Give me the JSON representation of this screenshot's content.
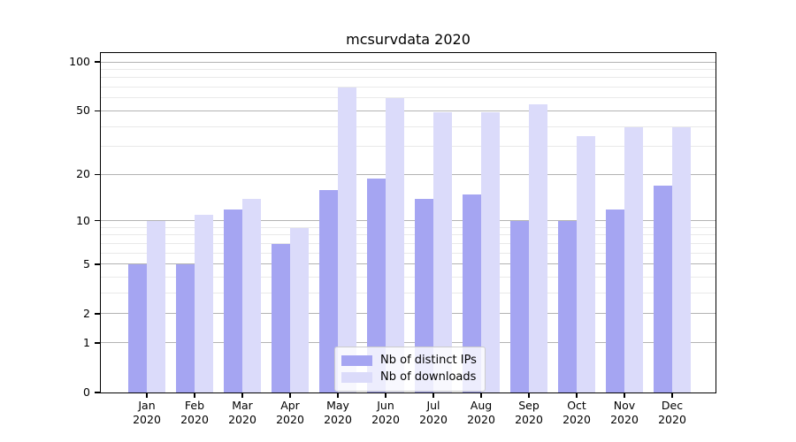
{
  "title": "mcsurvdata 2020",
  "chart_data": {
    "type": "bar",
    "title": "mcsurvdata 2020",
    "categories": [
      "Jan 2020",
      "Feb 2020",
      "Mar 2020",
      "Apr 2020",
      "May 2020",
      "Jun 2020",
      "Jul 2020",
      "Aug 2020",
      "Sep 2020",
      "Oct 2020",
      "Nov 2020",
      "Dec 2020"
    ],
    "series": [
      {
        "name": "Nb of distinct IPs",
        "key": "distinct-ips",
        "color": "#a5a5f2",
        "values": [
          5,
          5,
          12,
          7,
          16,
          19,
          14,
          15,
          10,
          10,
          12,
          17
        ]
      },
      {
        "name": "Nb of downloads",
        "key": "downloads",
        "color": "#dbdbfa",
        "values": [
          10,
          11,
          14,
          9,
          70,
          60,
          49,
          49,
          55,
          35,
          40,
          40
        ]
      }
    ],
    "xlabel": "",
    "ylabel": "",
    "yscale": "log(value+1)",
    "ylim": [
      0,
      115
    ],
    "yticks_major": [
      100,
      50,
      20,
      10,
      5,
      2,
      1,
      0
    ],
    "yticks_minor": [
      90,
      80,
      70,
      60,
      40,
      30,
      9,
      8,
      7,
      6,
      4,
      3
    ],
    "grid": "on",
    "legend_position": "lower center"
  },
  "colors": {
    "background": "#ffffff",
    "axis_frame": "#000000",
    "grid_major": "#b3b3b3",
    "grid_minor": "#e9e9e9",
    "tick_text": "#000000",
    "legend_border": "#cccccc",
    "legend_bg": "rgba(255,255,255,0.8)"
  }
}
